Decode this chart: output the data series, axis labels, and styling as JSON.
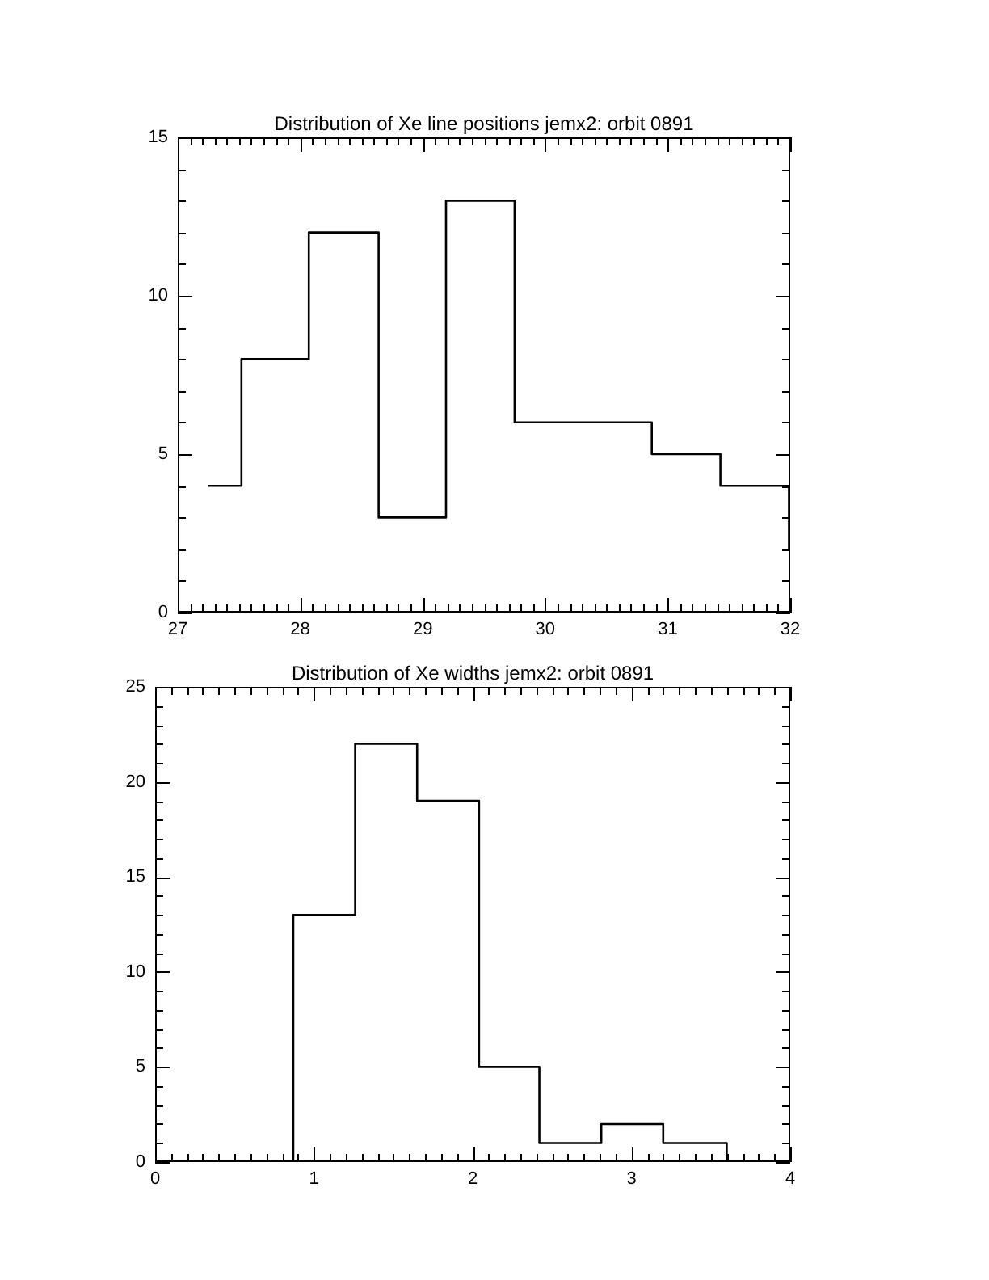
{
  "chart_data": [
    {
      "type": "histogram",
      "title": "Distribution of Xe line positions jemx2: orbit 0891",
      "color": "#000000",
      "bins": [
        27.25,
        27.52,
        28.07,
        28.64,
        29.19,
        29.75,
        30.31,
        30.87,
        31.43,
        31.99,
        32
      ],
      "values": [
        4,
        8,
        12,
        3,
        13,
        6,
        6,
        5,
        4,
        2
      ],
      "xlim": [
        27,
        32
      ],
      "ylim": [
        0,
        15
      ],
      "xticks": [
        27,
        {
          "value": 27.1,
          "label": null
        },
        {
          "value": 27.2,
          "label": null
        },
        {
          "value": 27.3,
          "label": null
        },
        {
          "value": 27.4,
          "label": null
        },
        {
          "value": 27.5,
          "label": null
        },
        {
          "value": 27.6,
          "label": null
        },
        {
          "value": 27.7,
          "label": null
        },
        {
          "value": 27.8,
          "label": null
        },
        {
          "value": 27.9,
          "label": null
        },
        28,
        {
          "value": 28.1,
          "label": null
        },
        {
          "value": 28.2,
          "label": null
        },
        {
          "value": 28.3,
          "label": null
        },
        {
          "value": 28.4,
          "label": null
        },
        {
          "value": 28.5,
          "label": null
        },
        {
          "value": 28.6,
          "label": null
        },
        {
          "value": 28.7,
          "label": null
        },
        {
          "value": 28.8,
          "label": null
        },
        {
          "value": 28.9,
          "label": null
        },
        29,
        {
          "value": 29.1,
          "label": null
        },
        {
          "value": 29.2,
          "label": null
        },
        {
          "value": 29.3,
          "label": null
        },
        {
          "value": 29.4,
          "label": null
        },
        {
          "value": 29.5,
          "label": null
        },
        {
          "value": 29.6,
          "label": null
        },
        {
          "value": 29.7,
          "label": null
        },
        {
          "value": 29.8,
          "label": null
        },
        {
          "value": 29.9,
          "label": null
        },
        30,
        {
          "value": 30.1,
          "label": null
        },
        {
          "value": 30.2,
          "label": null
        },
        {
          "value": 30.3,
          "label": null
        },
        {
          "value": 30.4,
          "label": null
        },
        {
          "value": 30.5,
          "label": null
        },
        {
          "value": 30.6,
          "label": null
        },
        {
          "value": 30.7,
          "label": null
        },
        {
          "value": 30.8,
          "label": null
        },
        {
          "value": 30.9,
          "label": null
        },
        31,
        {
          "value": 31.1,
          "label": null
        },
        {
          "value": 31.2,
          "label": null
        },
        {
          "value": 31.3,
          "label": null
        },
        {
          "value": 31.4,
          "label": null
        },
        {
          "value": 31.5,
          "label": null
        },
        {
          "value": 31.6,
          "label": null
        },
        {
          "value": 31.7,
          "label": null
        },
        {
          "value": 31.8,
          "label": null
        },
        {
          "value": 31.9,
          "label": null
        },
        32
      ],
      "yticks": [
        0,
        {
          "value": 1,
          "label": null
        },
        {
          "value": 2,
          "label": null
        },
        {
          "value": 3,
          "label": null
        },
        {
          "value": 4,
          "label": null
        },
        5,
        {
          "value": 6,
          "label": null
        },
        {
          "value": 7,
          "label": null
        },
        {
          "value": 8,
          "label": null
        },
        {
          "value": 9,
          "label": null
        },
        10,
        {
          "value": 11,
          "label": null
        },
        {
          "value": 12,
          "label": null
        },
        {
          "value": 13,
          "label": null
        },
        {
          "value": 14,
          "label": null
        },
        15
      ]
    },
    {
      "type": "histogram",
      "title": "Distribution of Xe widths jemx2: orbit 0891",
      "color": "#000000",
      "bins": [
        0.48,
        0.87,
        1.26,
        1.65,
        2.04,
        2.42,
        2.81,
        3.2,
        3.6,
        3.99
      ],
      "values": [
        0,
        13,
        22,
        19,
        5,
        1,
        2,
        1,
        0
      ],
      "xlim": [
        0,
        4
      ],
      "ylim": [
        0,
        25
      ],
      "xticks": [
        0,
        {
          "value": 0.1,
          "label": null
        },
        {
          "value": 0.2,
          "label": null
        },
        {
          "value": 0.3,
          "label": null
        },
        {
          "value": 0.4,
          "label": null
        },
        {
          "value": 0.5,
          "label": null
        },
        {
          "value": 0.6,
          "label": null
        },
        {
          "value": 0.7,
          "label": null
        },
        {
          "value": 0.8,
          "label": null
        },
        {
          "value": 0.9,
          "label": null
        },
        1,
        {
          "value": 1.1,
          "label": null
        },
        {
          "value": 1.2,
          "label": null
        },
        {
          "value": 1.3,
          "label": null
        },
        {
          "value": 1.4,
          "label": null
        },
        {
          "value": 1.5,
          "label": null
        },
        {
          "value": 1.6,
          "label": null
        },
        {
          "value": 1.7,
          "label": null
        },
        {
          "value": 1.8,
          "label": null
        },
        {
          "value": 1.9,
          "label": null
        },
        2,
        {
          "value": 2.1,
          "label": null
        },
        {
          "value": 2.2,
          "label": null
        },
        {
          "value": 2.3,
          "label": null
        },
        {
          "value": 2.4,
          "label": null
        },
        {
          "value": 2.5,
          "label": null
        },
        {
          "value": 2.6,
          "label": null
        },
        {
          "value": 2.7,
          "label": null
        },
        {
          "value": 2.8,
          "label": null
        },
        {
          "value": 2.9,
          "label": null
        },
        3,
        {
          "value": 3.1,
          "label": null
        },
        {
          "value": 3.2,
          "label": null
        },
        {
          "value": 3.3,
          "label": null
        },
        {
          "value": 3.4,
          "label": null
        },
        {
          "value": 3.5,
          "label": null
        },
        {
          "value": 3.6,
          "label": null
        },
        {
          "value": 3.7,
          "label": null
        },
        {
          "value": 3.8,
          "label": null
        },
        {
          "value": 3.9,
          "label": null
        },
        4
      ],
      "yticks": [
        0,
        {
          "value": 1,
          "label": null
        },
        {
          "value": 2,
          "label": null
        },
        {
          "value": 3,
          "label": null
        },
        {
          "value": 4,
          "label": null
        },
        5,
        {
          "value": 6,
          "label": null
        },
        {
          "value": 7,
          "label": null
        },
        {
          "value": 8,
          "label": null
        },
        {
          "value": 9,
          "label": null
        },
        10,
        {
          "value": 11,
          "label": null
        },
        {
          "value": 12,
          "label": null
        },
        {
          "value": 13,
          "label": null
        },
        {
          "value": 14,
          "label": null
        },
        15,
        {
          "value": 16,
          "label": null
        },
        {
          "value": 17,
          "label": null
        },
        {
          "value": 18,
          "label": null
        },
        {
          "value": 19,
          "label": null
        },
        20,
        {
          "value": 21,
          "label": null
        },
        {
          "value": 22,
          "label": null
        },
        {
          "value": 23,
          "label": null
        },
        {
          "value": 24,
          "label": null
        },
        25
      ]
    }
  ]
}
